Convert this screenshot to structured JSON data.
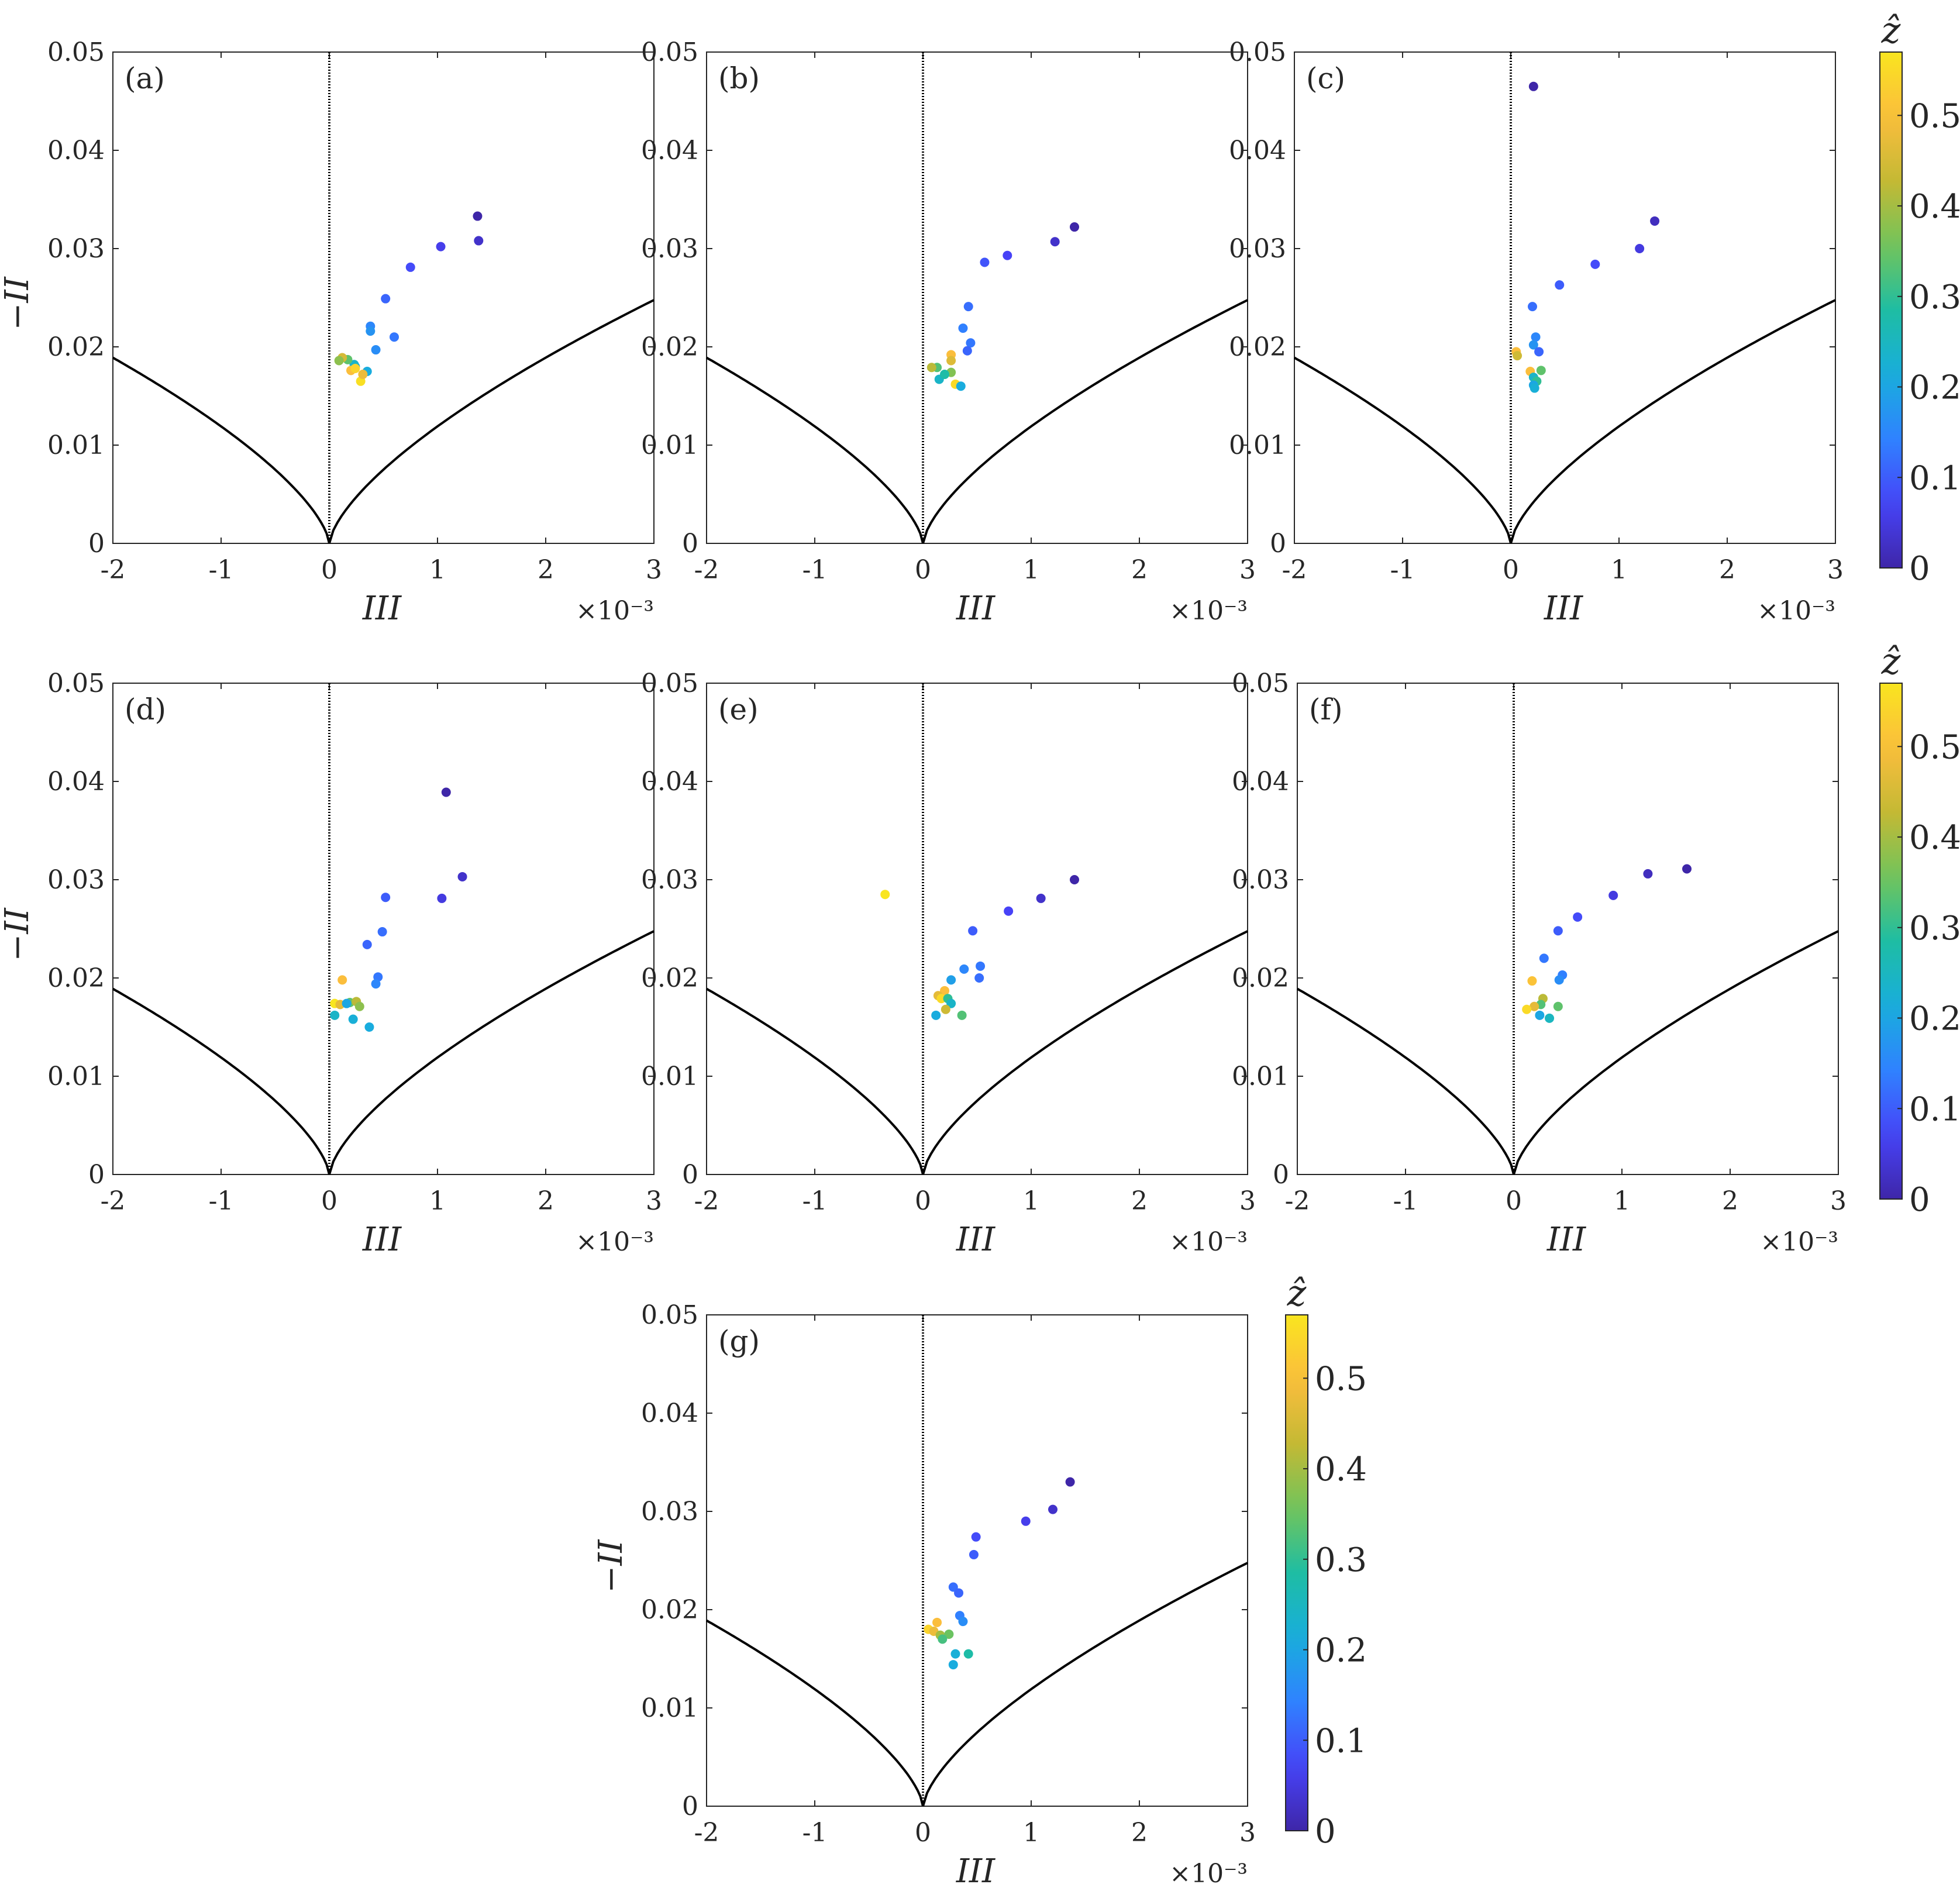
{
  "figure": {
    "xlabel": "III",
    "ylabel": "−II",
    "x_exponent_label": "×10⁻³",
    "colorbar_title": "ẑ",
    "colorbar_ticks": [
      "0",
      "0.1",
      "0.2",
      "0.3",
      "0.4",
      "0.5"
    ],
    "colorbar_range": [
      0,
      0.57
    ],
    "x_ticks": [
      "-2",
      "-1",
      "0",
      "1",
      "2",
      "3"
    ],
    "y_ticks": [
      "0",
      "0.01",
      "0.02",
      "0.03",
      "0.04",
      "0.05"
    ],
    "colormap": [
      "#3e26a8",
      "#4743f8",
      "#2f82ff",
      "#18aedc",
      "#1ebda3",
      "#72c45b",
      "#c4b934",
      "#fbbd3d",
      "#f9e51f"
    ]
  },
  "chart_data": [
    {
      "type": "scatter",
      "panel": "(a)",
      "title": "(a)",
      "xlabel": "III",
      "ylabel": "−II",
      "xlim": [
        -2,
        3
      ],
      "ylim": [
        0,
        0.05
      ],
      "x_scale": "1e-3",
      "series": [
        {
          "name": "points",
          "x": [
            1.37,
            1.38,
            1.03,
            0.75,
            0.52,
            0.6,
            0.38,
            0.38,
            0.43,
            0.35,
            0.24,
            0.23,
            0.17,
            0.12,
            0.09,
            0.2,
            0.24,
            0.29,
            0.31
          ],
          "y": [
            0.0333,
            0.0308,
            0.0302,
            0.0281,
            0.0249,
            0.021,
            0.0221,
            0.0216,
            0.0197,
            0.0175,
            0.018,
            0.0182,
            0.0187,
            0.0189,
            0.0186,
            0.0176,
            0.0178,
            0.0165,
            0.0172
          ],
          "z": [
            0.0,
            0.03,
            0.06,
            0.08,
            0.11,
            0.13,
            0.15,
            0.17,
            0.16,
            0.21,
            0.2,
            0.24,
            0.34,
            0.45,
            0.38,
            0.5,
            0.54,
            0.56,
            0.48
          ]
        }
      ]
    },
    {
      "type": "scatter",
      "panel": "(b)",
      "title": "(b)",
      "xlabel": "III",
      "ylabel": "−II",
      "xlim": [
        -2,
        3
      ],
      "ylim": [
        0,
        0.05
      ],
      "x_scale": "1e-3",
      "series": [
        {
          "name": "points",
          "x": [
            1.4,
            1.22,
            0.78,
            0.57,
            0.42,
            0.37,
            0.44,
            0.41,
            0.26,
            0.26,
            0.13,
            0.08,
            0.15,
            0.26,
            0.3,
            0.2,
            0.35
          ],
          "y": [
            0.0322,
            0.0307,
            0.0293,
            0.0286,
            0.0241,
            0.0219,
            0.0204,
            0.0196,
            0.0192,
            0.0186,
            0.0179,
            0.0179,
            0.0167,
            0.0174,
            0.0162,
            0.0172,
            0.016
          ],
          "z": [
            0.0,
            0.03,
            0.07,
            0.09,
            0.12,
            0.14,
            0.13,
            0.11,
            0.5,
            0.46,
            0.33,
            0.42,
            0.24,
            0.37,
            0.55,
            0.28,
            0.21
          ]
        }
      ]
    },
    {
      "type": "scatter",
      "panel": "(c)",
      "title": "(c)",
      "xlabel": "III",
      "ylabel": "−II",
      "xlim": [
        -2,
        3
      ],
      "ylim": [
        0,
        0.05
      ],
      "x_scale": "1e-3",
      "series": [
        {
          "name": "points",
          "x": [
            0.21,
            1.33,
            1.19,
            0.78,
            0.45,
            0.2,
            0.23,
            0.21,
            0.26,
            0.05,
            0.06,
            0.18,
            0.28,
            0.21,
            0.24,
            0.21,
            0.22
          ],
          "y": [
            0.0465,
            0.0328,
            0.03,
            0.0284,
            0.0263,
            0.0241,
            0.021,
            0.0202,
            0.0195,
            0.0195,
            0.0191,
            0.0175,
            0.0176,
            0.0169,
            0.0165,
            0.0161,
            0.0158
          ],
          "z": [
            0.0,
            0.02,
            0.05,
            0.08,
            0.1,
            0.12,
            0.15,
            0.17,
            0.11,
            0.5,
            0.44,
            0.5,
            0.34,
            0.24,
            0.3,
            0.2,
            0.22
          ]
        }
      ]
    },
    {
      "type": "scatter",
      "panel": "(d)",
      "title": "(d)",
      "xlabel": "III",
      "ylabel": "−II",
      "xlim": [
        -2,
        3
      ],
      "ylim": [
        0,
        0.05
      ],
      "x_scale": "1e-3",
      "series": [
        {
          "name": "points",
          "x": [
            1.08,
            1.23,
            1.04,
            0.52,
            0.49,
            0.35,
            0.45,
            0.43,
            0.12,
            0.05,
            0.1,
            0.19,
            0.25,
            0.28,
            0.16,
            0.05,
            0.22,
            0.37
          ],
          "y": [
            0.0389,
            0.0303,
            0.0281,
            0.0282,
            0.0247,
            0.0234,
            0.0201,
            0.0194,
            0.0198,
            0.0174,
            0.0173,
            0.0175,
            0.0176,
            0.0171,
            0.0174,
            0.0162,
            0.0158,
            0.015
          ],
          "z": [
            0.0,
            0.03,
            0.05,
            0.1,
            0.12,
            0.11,
            0.13,
            0.15,
            0.5,
            0.57,
            0.47,
            0.34,
            0.42,
            0.38,
            0.2,
            0.24,
            0.22,
            0.21
          ]
        }
      ]
    },
    {
      "type": "scatter",
      "panel": "(e)",
      "title": "(e)",
      "xlabel": "III",
      "ylabel": "−II",
      "xlim": [
        -2,
        3
      ],
      "ylim": [
        0,
        0.05
      ],
      "x_scale": "1e-3",
      "series": [
        {
          "name": "points",
          "x": [
            -0.35,
            1.4,
            1.09,
            0.79,
            0.46,
            0.53,
            0.38,
            0.52,
            0.26,
            0.2,
            0.14,
            0.17,
            0.23,
            0.26,
            0.21,
            0.12,
            0.36
          ],
          "y": [
            0.0285,
            0.03,
            0.0281,
            0.0268,
            0.0248,
            0.0212,
            0.0209,
            0.02,
            0.0198,
            0.0187,
            0.0182,
            0.0179,
            0.0179,
            0.0174,
            0.0168,
            0.0162,
            0.0162
          ],
          "z": [
            0.57,
            0.0,
            0.03,
            0.07,
            0.1,
            0.13,
            0.15,
            0.12,
            0.19,
            0.5,
            0.47,
            0.55,
            0.3,
            0.24,
            0.44,
            0.21,
            0.33
          ]
        }
      ]
    },
    {
      "type": "scatter",
      "panel": "(f)",
      "title": "(f)",
      "xlabel": "III",
      "ylabel": "−II",
      "xlim": [
        -2,
        3
      ],
      "ylim": [
        0,
        0.05
      ],
      "x_scale": "1e-3",
      "series": [
        {
          "name": "points",
          "x": [
            1.6,
            1.24,
            0.92,
            0.59,
            0.41,
            0.28,
            0.45,
            0.42,
            0.17,
            0.27,
            0.41,
            0.25,
            0.19,
            0.12,
            0.24,
            0.33
          ],
          "y": [
            0.0311,
            0.0306,
            0.0284,
            0.0262,
            0.0248,
            0.022,
            0.0203,
            0.0198,
            0.0197,
            0.0179,
            0.0171,
            0.0173,
            0.0171,
            0.0168,
            0.0162,
            0.0159
          ],
          "z": [
            0.0,
            0.02,
            0.05,
            0.08,
            0.1,
            0.13,
            0.14,
            0.16,
            0.51,
            0.42,
            0.34,
            0.33,
            0.47,
            0.55,
            0.2,
            0.25
          ]
        }
      ]
    },
    {
      "type": "scatter",
      "panel": "(g)",
      "title": "(g)",
      "xlabel": "III",
      "ylabel": "−II",
      "xlim": [
        -2,
        3
      ],
      "ylim": [
        0,
        0.05
      ],
      "x_scale": "1e-3",
      "series": [
        {
          "name": "points",
          "x": [
            1.36,
            1.2,
            0.95,
            0.49,
            0.47,
            0.28,
            0.33,
            0.34,
            0.37,
            0.13,
            0.05,
            0.1,
            0.16,
            0.24,
            0.18,
            0.3,
            0.42,
            0.28
          ],
          "y": [
            0.033,
            0.0302,
            0.029,
            0.0274,
            0.0256,
            0.0223,
            0.0217,
            0.0194,
            0.0188,
            0.0187,
            0.018,
            0.0178,
            0.0174,
            0.0175,
            0.017,
            0.0155,
            0.0155,
            0.0144
          ],
          "z": [
            0.0,
            0.03,
            0.06,
            0.08,
            0.1,
            0.12,
            0.11,
            0.14,
            0.16,
            0.5,
            0.54,
            0.48,
            0.4,
            0.35,
            0.32,
            0.22,
            0.28,
            0.21
          ]
        }
      ]
    }
  ]
}
